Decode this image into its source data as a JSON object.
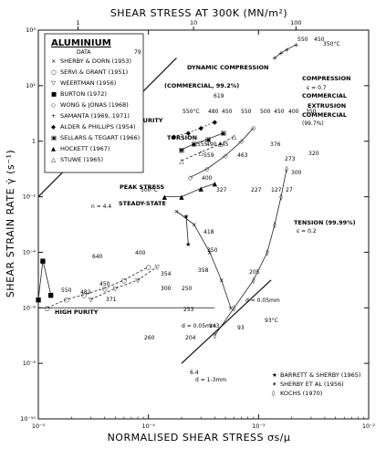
{
  "chart_data": {
    "type": "scatter",
    "title": "",
    "top_axis_title": "SHEAR STRESS AT 300K (MN/m²)",
    "top_ticks": [
      "1",
      "10",
      "100"
    ],
    "xlabel": "NORMALISED SHEAR STRESS σs/μ",
    "ylabel": "SHEAR STRAIN RATE γ̇ (s⁻¹)",
    "xscale": "log",
    "yscale": "log",
    "xlim": [
      1e-05,
      0.01
    ],
    "ylim": [
      1e-10,
      10000.0
    ],
    "x_ticks": [
      "10⁻⁵",
      "10⁻⁴",
      "10⁻³",
      "10⁻²"
    ],
    "y_ticks": [
      "10⁴",
      "10²",
      "1",
      "10⁻²",
      "10⁻⁴",
      "10⁻⁶",
      "10⁻⁸",
      "10⁻¹⁰"
    ],
    "legend": {
      "title": "ALUMINIUM",
      "subtitle": "DATA",
      "tag": "79",
      "entries": [
        {
          "symbol": "×",
          "label": "SHERBY & DORN (1953)"
        },
        {
          "symbol": "○",
          "label": "SERVI & GRANT (1951)"
        },
        {
          "symbol": "▽",
          "label": "WEERTMAN (1956)"
        },
        {
          "symbol": "■",
          "label": "BURTON (1972)"
        },
        {
          "symbol": "◇",
          "label": "WONG & JONAS (1968)"
        },
        {
          "symbol": "+",
          "label": "SAMANTA (1969, 1971)"
        },
        {
          "symbol": "◆",
          "label": "ALDER & PHILLIPS (1954)"
        },
        {
          "symbol": "▣",
          "label": "SELLARS & TEGART (1966)"
        },
        {
          "symbol": "▲",
          "label": "HOCKETT (1967)"
        },
        {
          "symbol": "△",
          "label": "STUWE (1965)"
        }
      ]
    },
    "legend2": {
      "entries": [
        {
          "symbol": "★",
          "label": "BARRETT & SHERBY (1965)"
        },
        {
          "symbol": "✶",
          "label": "SHERBY ET AL (1956)"
        },
        {
          "symbol": "◊",
          "label": "KOCHS (1970)"
        }
      ]
    },
    "annotations": [
      "DYNAMIC COMPRESSION",
      "COMPRESSION",
      "ε = 0.7",
      "COMMERCIAL",
      "EXTRUSION",
      "COMMERCIAL",
      "(99.7%)",
      "(COMMERCIAL, 99.2%)",
      "HIGH PURITY",
      "TORSION",
      "PEAK STRESS",
      "STEADY-STATE",
      "TENSION (99.99%)",
      "ε = 0.2",
      "HIGH PURITY",
      "n = 4.4",
      "d = 0.05mm",
      "d = 0.05mm",
      "d = 1-3mm",
      "6.4",
      "550",
      "450",
      "350°C",
      "619",
      "550°C",
      "480",
      "450",
      "550",
      "500",
      "450",
      "400",
      "350",
      "320",
      "555",
      "490",
      "445",
      "559",
      "463",
      "376",
      "273",
      "300",
      "500°C",
      "400",
      "327",
      "227",
      "127",
      "27",
      "418",
      "350",
      "358",
      "354",
      "640",
      "550",
      "482",
      "450",
      "371",
      "400",
      "300",
      "250",
      "205",
      "253",
      "260",
      "204",
      "143",
      "93",
      "93°C"
    ],
    "series": [
      {
        "name": "SHERBY & DORN (1953)",
        "points": [
          [
            0.00018,
            0.003
          ],
          [
            0.00026,
            0.001
          ],
          [
            0.00036,
            0.0001
          ],
          [
            0.00046,
            1e-05
          ],
          [
            0.00056,
            1e-06
          ]
        ]
      },
      {
        "name": "SERVI & GRANT (1951)",
        "points": [
          [
            1.2e-05,
            1e-06
          ],
          [
            1.8e-05,
            2e-06
          ],
          [
            2.6e-05,
            3e-06
          ],
          [
            4e-05,
            5e-06
          ],
          [
            6e-05,
            1e-05
          ],
          [
            0.0001,
            3e-05
          ]
        ]
      },
      {
        "name": "WEERTMAN (1956)",
        "points": [
          [
            3e-05,
            2e-06
          ],
          [
            5e-05,
            5e-06
          ],
          [
            8e-05,
            1e-05
          ],
          [
            0.00012,
            3e-05
          ]
        ]
      },
      {
        "name": "BURTON (1972)",
        "points": [
          [
            1e-05,
            2e-06
          ],
          [
            1.1e-05,
            5e-05
          ],
          [
            1.3e-05,
            3e-06
          ]
        ]
      },
      {
        "name": "WONG & JONAS (1968)",
        "points": [
          [
            0.00024,
            0.05
          ],
          [
            0.00034,
            0.1
          ],
          [
            0.0005,
            0.3
          ],
          [
            0.0007,
            1
          ],
          [
            0.0009,
            3
          ]
        ]
      },
      {
        "name": "SAMANTA (1969, 1971)",
        "points": [
          [
            0.0014,
            1000.0
          ],
          [
            0.0016,
            1500.0
          ],
          [
            0.0018,
            2000.0
          ],
          [
            0.0022,
            3000.0
          ]
        ]
      },
      {
        "name": "ALDER & PHILLIPS (1954)",
        "points": [
          [
            0.00017,
            1.5
          ],
          [
            0.00023,
            2
          ],
          [
            0.0003,
            3
          ],
          [
            0.0004,
            5
          ]
        ]
      },
      {
        "name": "SELLARS & TEGART (1966)",
        "points": [
          [
            0.0002,
            0.5
          ],
          [
            0.00026,
            0.8
          ],
          [
            0.00035,
            1.2
          ],
          [
            0.00048,
            2
          ]
        ]
      },
      {
        "name": "HOCKETT (1967)",
        "points": [
          [
            0.00014,
            0.01
          ],
          [
            0.0002,
            0.01
          ],
          [
            0.0003,
            0.02
          ],
          [
            0.0004,
            0.03
          ]
        ]
      },
      {
        "name": "STUWE (1965)",
        "points": [
          [
            0.0002,
            0.2
          ],
          [
            0.0003,
            0.4
          ],
          [
            0.00045,
            0.8
          ],
          [
            0.0006,
            1.5
          ]
        ]
      },
      {
        "name": "BARRETT & SHERBY (1965)",
        "points": [
          [
            0.00022,
            0.002
          ],
          [
            0.00023,
            0.0002
          ]
        ]
      },
      {
        "name": "KOCHS (1970)",
        "points": [
          [
            0.0004,
            1e-07
          ],
          [
            0.0006,
            1e-06
          ],
          [
            0.0009,
            1e-05
          ],
          [
            0.0012,
            0.0001
          ],
          [
            0.0014,
            0.001
          ],
          [
            0.0016,
            0.01
          ],
          [
            0.0018,
            0.1
          ]
        ]
      }
    ],
    "grid": false
  }
}
